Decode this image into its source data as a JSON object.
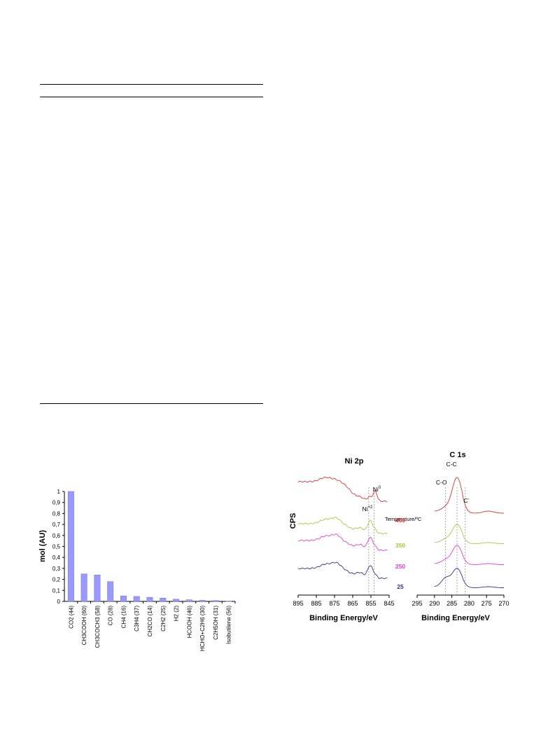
{
  "table_rules": 3,
  "bar_chart": {
    "type": "bar",
    "ylabel": "mol (AU)",
    "ylim": [
      0,
      1
    ],
    "yticks": [
      "0",
      "0,1",
      "0,2",
      "0,3",
      "0,4",
      "0,5",
      "0,6",
      "0,7",
      "0,8",
      "0,9",
      "1"
    ],
    "categories": [
      "CO2 (44)",
      "CH3COOH (60)",
      "CH3COCH3 (58)",
      "CO (28)",
      "CH4 (16)",
      "C3H4 (37)",
      "CH2CO (14)",
      "C2H2 (25)",
      "H2 (2)",
      "HCOOH (46)",
      "HCHO+C2H6 (30)",
      "C2H5OH (31)",
      "Isobutilene (56)"
    ],
    "values": [
      1.0,
      0.25,
      0.24,
      0.18,
      0.05,
      0.045,
      0.037,
      0.03,
      0.02,
      0.015,
      0.01,
      0.008,
      0.003
    ],
    "bar_color": "#9999ff"
  },
  "xps": {
    "type": "line",
    "ylabel": "CPS",
    "legend_title": "Temperature/ºC",
    "temperatures": [
      {
        "label": "450",
        "color": "#e03030"
      },
      {
        "label": "350",
        "color": "#a8c83c"
      },
      {
        "label": "250",
        "color": "#e040d0"
      },
      {
        "label": "25",
        "color": "#303080"
      }
    ],
    "ni2p": {
      "title": "Ni 2p",
      "xlabel": "Binding Energy/eV",
      "xlim": [
        895,
        845
      ],
      "xticks": [
        895,
        885,
        875,
        865,
        855,
        845
      ],
      "annotations": [
        {
          "base": "Ni",
          "sup": "+2",
          "x": 856.2
        },
        {
          "base": "Ni",
          "sup": "0",
          "x": 853.3
        }
      ]
    },
    "c1s": {
      "title": "C 1s",
      "xlabel": "Binding Energy/eV",
      "xlim": [
        295,
        270
      ],
      "xticks": [
        295,
        290,
        285,
        280,
        275,
        270
      ],
      "annotations": [
        {
          "base": "C-O",
          "x": 286.8
        },
        {
          "base": "C-C",
          "x": 283.5
        },
        {
          "base": "C",
          "sup": "-",
          "x": 281.2
        }
      ]
    }
  }
}
